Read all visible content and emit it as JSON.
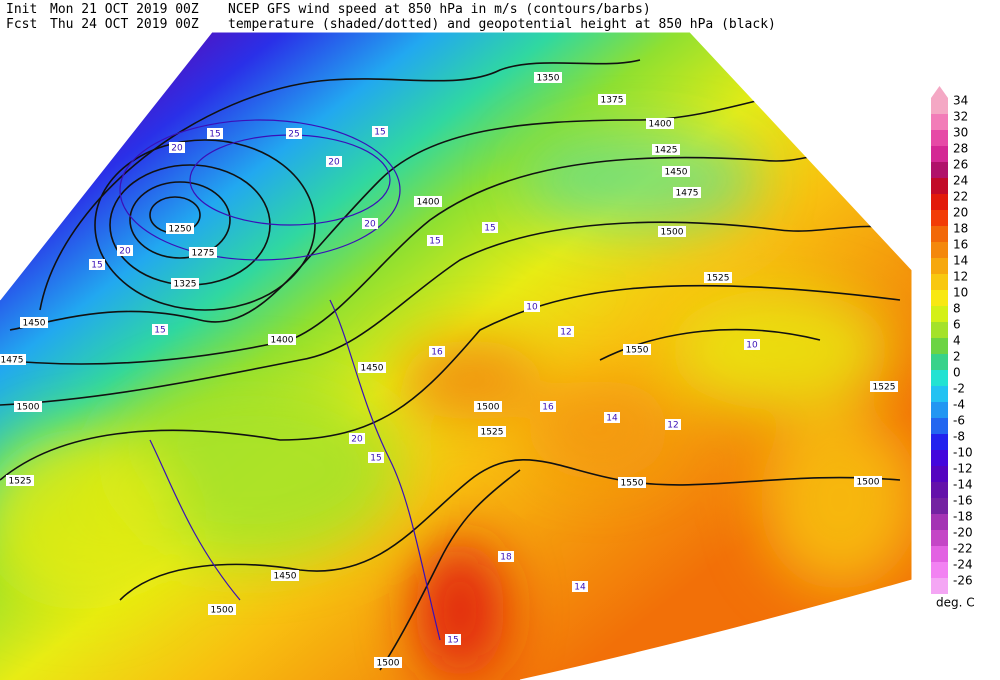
{
  "header": {
    "line1": {
      "label": "Init",
      "date": "Mon 21 OCT 2019 00Z",
      "text": "NCEP GFS wind speed at 850 hPa in m/s (contours/barbs)"
    },
    "line2": {
      "label": "Fcst",
      "date": "Thu 24 OCT 2019 00Z",
      "text": "temperature (shaded/dotted) and geopotential height at 850 hPa (black)"
    }
  },
  "colorbar": {
    "levels": [
      34,
      32,
      30,
      28,
      26,
      24,
      22,
      20,
      18,
      16,
      14,
      12,
      10,
      8,
      6,
      4,
      2,
      0,
      -2,
      -4,
      -6,
      -8,
      -10,
      -12,
      -14,
      -16,
      -18,
      -20,
      -22,
      -24,
      -26
    ],
    "colors": [
      "#f4a8c4",
      "#f27cb8",
      "#e64aa6",
      "#d42894",
      "#b0126a",
      "#c20a28",
      "#e21a0a",
      "#f23c06",
      "#f26808",
      "#f4880c",
      "#f6a80e",
      "#f8c810",
      "#f8e812",
      "#d4f016",
      "#a4e22a",
      "#6cd444",
      "#38d28a",
      "#22e2d2",
      "#22c2f2",
      "#2296f2",
      "#2266f0",
      "#2222ee",
      "#4406dc",
      "#5404c0",
      "#6412aa",
      "#7422a2",
      "#a434b4",
      "#c446c6",
      "#e262e2",
      "#f282f2",
      "#f4a6f4"
    ],
    "unit": "deg. C"
  },
  "contour_labels": [
    "1250",
    "1275",
    "1325",
    "1350",
    "1375",
    "1400",
    "1425",
    "1450",
    "1475",
    "1500",
    "1525",
    "1550",
    "1450",
    "1475",
    "1500",
    "1525",
    "1400",
    "1450",
    "1500",
    "1525",
    "1550",
    "1500",
    "1525",
    "1450",
    "1500",
    "1500",
    "1400",
    "10",
    "12",
    "16",
    "16",
    "14",
    "12",
    "18",
    "14",
    "10",
    "15",
    "20",
    "25",
    "20",
    "15",
    "20",
    "15",
    "15",
    "20",
    "15",
    "15",
    "15",
    "20",
    "15"
  ]
}
